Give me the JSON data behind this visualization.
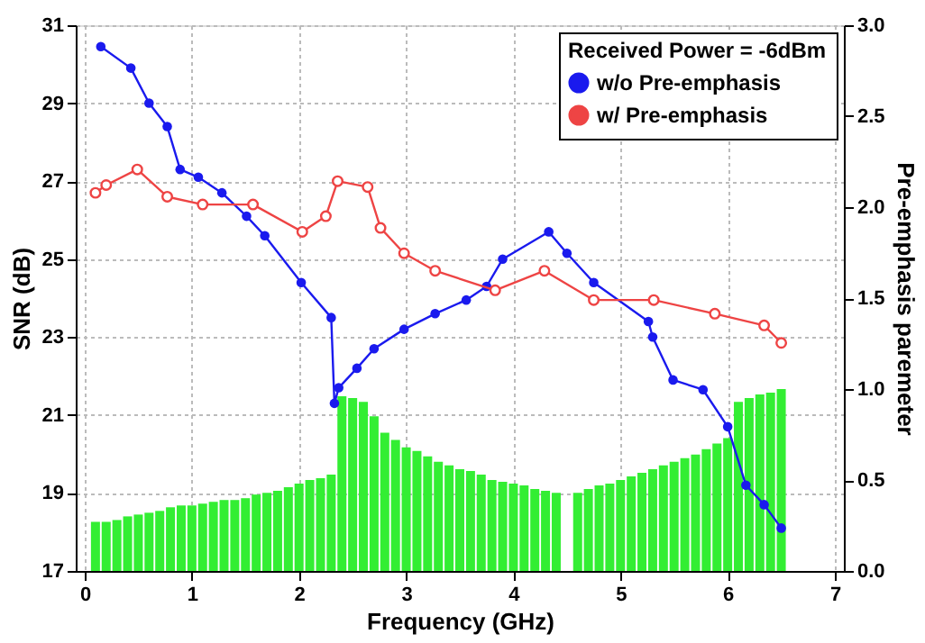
{
  "chart_data": {
    "type": "line",
    "xlabel": "Frequency (GHz)",
    "ylabel": "SNR (dB)",
    "y2label": "Pre-emphasis paremeter",
    "legend_title": "Received Power = -6dBm",
    "xlim": [
      0,
      7
    ],
    "xticks": [
      0,
      1,
      2,
      3,
      4,
      5,
      6,
      7
    ],
    "ylim": [
      17,
      31
    ],
    "yticks": [
      17,
      19,
      21,
      23,
      25,
      27,
      29,
      31
    ],
    "y2lim": [
      0,
      3
    ],
    "y2ticks": [
      {
        "value": 0,
        "label": "0.0"
      },
      {
        "value": 0.5,
        "label": "0.5"
      },
      {
        "value": 1,
        "label": "1.0"
      },
      {
        "value": 1.5,
        "label": "1.5"
      },
      {
        "value": 2,
        "label": "2.0"
      },
      {
        "value": 2.5,
        "label": "2.5"
      },
      {
        "value": 3,
        "label": "3.0"
      }
    ],
    "grid": true,
    "legend": "top right",
    "marker": "circle",
    "line_style": "solid",
    "series": [
      {
        "type": "bar",
        "axis": "y2",
        "color": "#33ee33",
        "x": [
          0.1,
          0.2,
          0.3,
          0.4,
          0.5,
          0.6,
          0.7,
          0.8,
          0.9,
          1.0,
          1.1,
          1.2,
          1.3,
          1.4,
          1.5,
          1.6,
          1.7,
          1.8,
          1.9,
          2.0,
          2.1,
          2.2,
          2.3,
          2.4,
          2.5,
          2.6,
          2.7,
          2.8,
          2.9,
          3.0,
          3.1,
          3.2,
          3.3,
          3.4,
          3.5,
          3.6,
          3.7,
          3.8,
          3.9,
          4.0,
          4.1,
          4.2,
          4.3,
          4.4,
          4.5,
          4.6,
          4.7,
          4.8,
          4.9,
          5.0,
          5.1,
          5.2,
          5.3,
          5.4,
          5.5,
          5.6,
          5.7,
          5.8,
          5.9,
          6.0,
          6.1,
          6.2,
          6.3,
          6.4,
          6.5
        ],
        "values": [
          0.27,
          0.27,
          0.28,
          0.3,
          0.31,
          0.32,
          0.33,
          0.35,
          0.36,
          0.36,
          0.37,
          0.38,
          0.39,
          0.39,
          0.4,
          0.42,
          0.43,
          0.44,
          0.46,
          0.48,
          0.5,
          0.51,
          0.53,
          0.96,
          0.95,
          0.93,
          0.85,
          0.76,
          0.72,
          0.68,
          0.66,
          0.63,
          0.6,
          0.58,
          0.56,
          0.55,
          0.53,
          0.5,
          0.49,
          0.48,
          0.47,
          0.45,
          0.44,
          0.43,
          null,
          0.43,
          0.45,
          0.47,
          0.48,
          0.5,
          0.52,
          0.54,
          0.56,
          0.58,
          0.6,
          0.62,
          0.64,
          0.67,
          0.7,
          0.73,
          0.93,
          0.95,
          0.97,
          0.98,
          1.0
        ]
      },
      {
        "name": "w/o Pre-emphasis",
        "color": "#1a1aee",
        "x": [
          0.15,
          0.43,
          0.6,
          0.77,
          0.89,
          1.06,
          1.28,
          1.51,
          1.68,
          2.02,
          2.3,
          2.33,
          2.37,
          2.54,
          2.7,
          2.98,
          3.27,
          3.56,
          3.75,
          3.9,
          4.33,
          4.5,
          4.75,
          5.26,
          5.3,
          5.49,
          5.77,
          6.0,
          6.17,
          6.34,
          6.5
        ],
        "values": [
          30.45,
          29.9,
          29.0,
          28.4,
          27.3,
          27.1,
          26.7,
          26.1,
          25.6,
          24.4,
          23.5,
          21.3,
          21.7,
          22.2,
          22.7,
          23.2,
          23.6,
          23.95,
          24.3,
          25.0,
          25.7,
          25.15,
          24.4,
          23.4,
          23.0,
          21.9,
          21.65,
          20.7,
          19.2,
          18.7,
          18.1
        ]
      },
      {
        "name": "w/   Pre-emphasis",
        "color": "#ee4444",
        "x": [
          0.1,
          0.2,
          0.49,
          0.77,
          1.1,
          1.57,
          2.03,
          2.25,
          2.36,
          2.64,
          2.76,
          2.98,
          3.27,
          3.83,
          4.29,
          4.75,
          5.31,
          5.88,
          6.34,
          6.5
        ],
        "values": [
          26.7,
          26.9,
          27.3,
          26.6,
          26.4,
          26.4,
          25.7,
          26.1,
          27.0,
          26.85,
          25.8,
          25.15,
          24.7,
          24.2,
          24.7,
          23.95,
          23.95,
          23.6,
          23.3,
          22.85
        ]
      }
    ]
  }
}
